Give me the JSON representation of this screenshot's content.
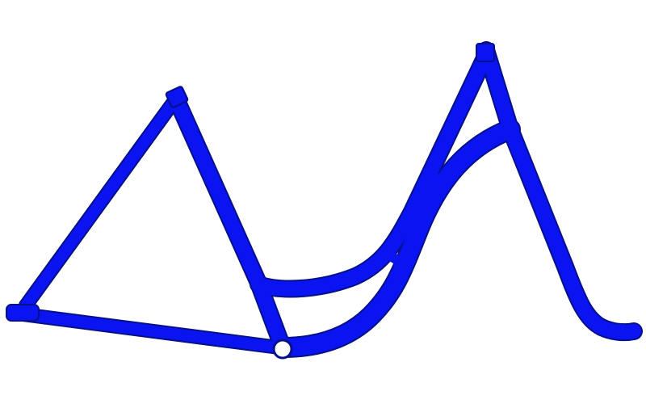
{
  "illustration": {
    "subject": "step-through-bicycle-frame",
    "colors": {
      "frame": "#0a14f0",
      "outline": "#06108a",
      "background": "#ffffff",
      "bottom_bracket": "#ffffff"
    }
  }
}
